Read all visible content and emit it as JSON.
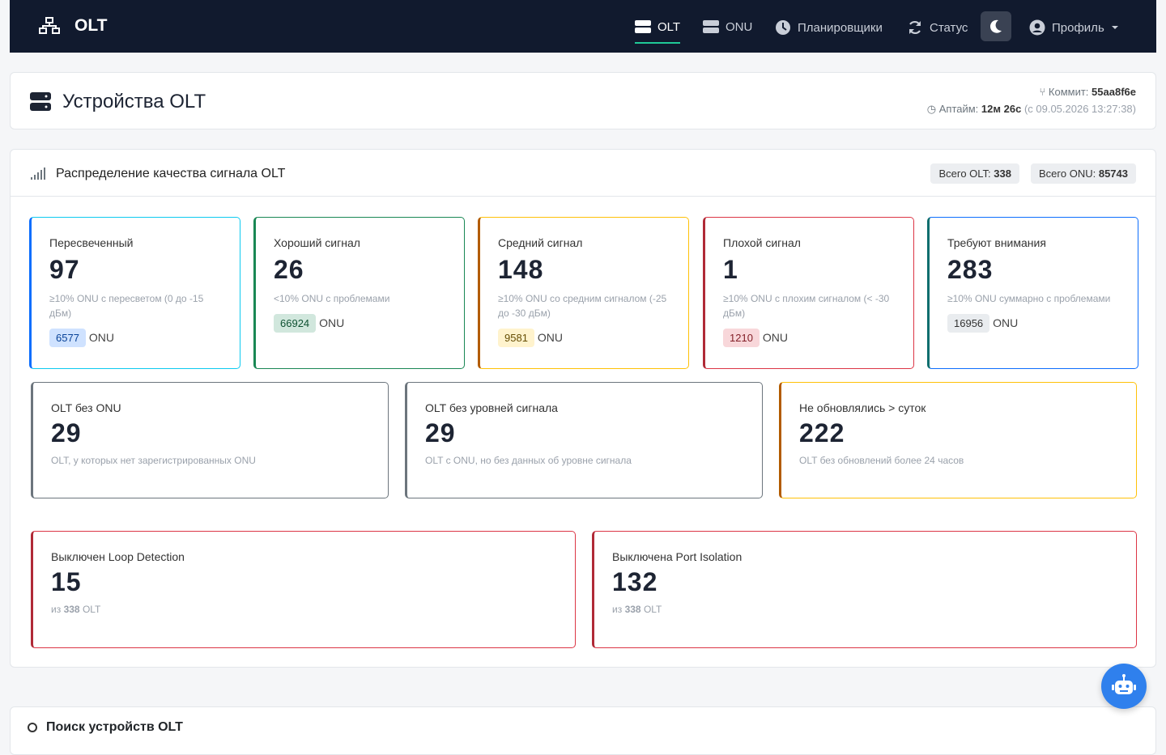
{
  "navbar": {
    "brand": "OLT",
    "items": [
      "OLT",
      "ONU",
      "Планировщики",
      "Статус"
    ],
    "profile": "Профиль"
  },
  "header": {
    "title": "Устройства OLT",
    "commit_label": "Коммит:",
    "commit": "55aa8f6e",
    "uptime_label": "Аптайм:",
    "uptime": "12м 26с",
    "since": "(с 09.05.2026 13:27:38)"
  },
  "panel": {
    "title": "Распределение качества сигнала OLT",
    "badges": [
      {
        "label": "Всего OLT:",
        "value": 338
      },
      {
        "label": "Всего ONU:",
        "value": 85743
      }
    ],
    "onu_unit": "ONU",
    "olt_unit": "OLT",
    "of_label": "из",
    "signal_cards": [
      {
        "title": "Пересвеченный",
        "value": 97,
        "description": "≥10% ONU с пересветом (0 до -15 дБм)",
        "onu": 6577
      },
      {
        "title": "Хороший сигнал",
        "value": 26,
        "description": "<10% ONU с проблемами",
        "onu": 66924
      },
      {
        "title": "Средний сигнал",
        "value": 148,
        "description": "≥10% ONU со средним сигналом (-25 до -30 дБм)",
        "onu": 9581
      },
      {
        "title": "Плохой сигнал",
        "value": 1,
        "description": "≥10% ONU с плохим сигналом (< -30 дБм)",
        "onu": 1210
      },
      {
        "title": "Требуют внимания",
        "value": 283,
        "description": "≥10% ONU суммарно с проблемами",
        "onu": 16956
      }
    ],
    "status_cards": [
      {
        "title": "OLT без ONU",
        "value": 29,
        "description": "OLT, у которых нет зарегистрированных ONU"
      },
      {
        "title": "OLT без уровней сигнала",
        "value": 29,
        "description": "OLT с ONU, но без данных об уровне сигнала"
      },
      {
        "title": "Не обновлялись > суток",
        "value": 222,
        "description": "OLT без обновлений более 24 часов"
      }
    ],
    "config_cards": [
      {
        "title": "Выключен Loop Detection",
        "value": 15
      },
      {
        "title": "Выключена Port Isolation",
        "value": 132
      }
    ]
  },
  "search": {
    "title": "Поиск устройств OLT"
  }
}
